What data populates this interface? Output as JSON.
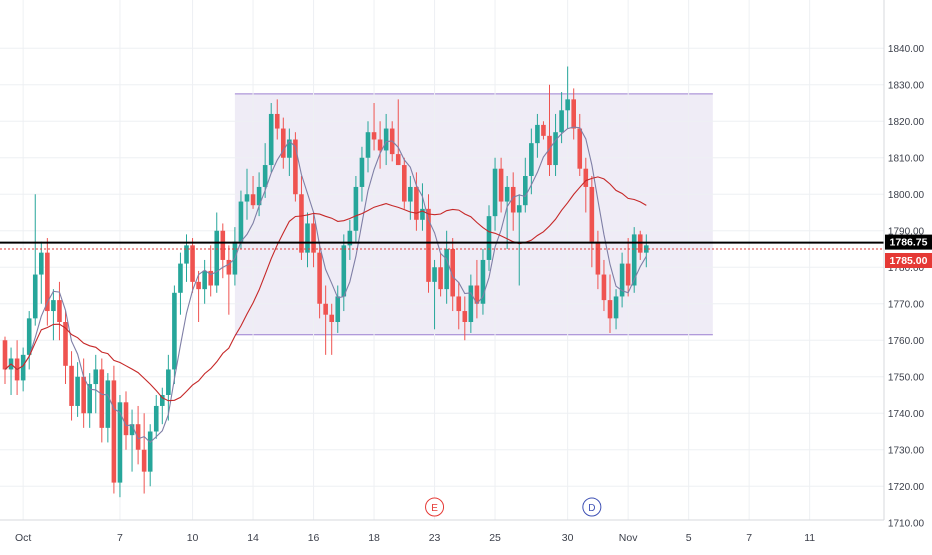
{
  "chart_data": {
    "type": "candlestick",
    "y_axis": {
      "range": [
        1705,
        1845
      ],
      "ticks": [
        "1710.00",
        "1720.00",
        "1730.00",
        "1740.00",
        "1750.00",
        "1760.00",
        "1770.00",
        "1780.00",
        "1790.00",
        "1800.00",
        "1810.00",
        "1820.00",
        "1830.00",
        "1840.00"
      ],
      "side": "right"
    },
    "x_axis": {
      "labels": [
        {
          "text": "Oct",
          "bar": 3
        },
        {
          "text": "7",
          "bar": 19
        },
        {
          "text": "10",
          "bar": 31
        },
        {
          "text": "14",
          "bar": 41
        },
        {
          "text": "16",
          "bar": 51
        },
        {
          "text": "18",
          "bar": 61
        },
        {
          "text": "23",
          "bar": 71
        },
        {
          "text": "25",
          "bar": 81
        },
        {
          "text": "30",
          "bar": 93
        },
        {
          "text": "Nov",
          "bar": 103
        },
        {
          "text": "5",
          "bar": 113
        },
        {
          "text": "7",
          "bar": 123
        },
        {
          "text": "11",
          "bar": 133
        }
      ]
    },
    "price_labels": [
      {
        "text": "1786.75",
        "value": 1786.75,
        "color": "#000000",
        "line": "solid"
      },
      {
        "text": "1785.00",
        "value": 1785.0,
        "color": "#e53935",
        "line": "dotted"
      }
    ],
    "range_box": {
      "x_start_bar": 38,
      "x_end_bar": 117,
      "top": 1827.5,
      "bottom": 1761.5
    },
    "event_markers": [
      {
        "text": "E",
        "bar": 71,
        "color": "#e53935"
      },
      {
        "text": "D",
        "bar": 97,
        "color": "#3f51b5"
      }
    ],
    "candles": [
      [
        1760,
        1761,
        1748,
        1752
      ],
      [
        1752,
        1758,
        1745,
        1755
      ],
      [
        1755,
        1760,
        1745,
        1749
      ],
      [
        1749,
        1758,
        1746,
        1756
      ],
      [
        1756,
        1768,
        1752,
        1766
      ],
      [
        1766,
        1800,
        1764,
        1778
      ],
      [
        1778,
        1787,
        1770,
        1784
      ],
      [
        1784,
        1788,
        1764,
        1768
      ],
      [
        1768,
        1774,
        1760,
        1771
      ],
      [
        1771,
        1776,
        1760,
        1765
      ],
      [
        1765,
        1768,
        1748,
        1753
      ],
      [
        1753,
        1757,
        1738,
        1742
      ],
      [
        1742,
        1754,
        1739,
        1750
      ],
      [
        1750,
        1755,
        1736,
        1740
      ],
      [
        1740,
        1751,
        1736,
        1748
      ],
      [
        1748,
        1756,
        1740,
        1752
      ],
      [
        1752,
        1755,
        1732,
        1736
      ],
      [
        1736,
        1751,
        1732,
        1749
      ],
      [
        1749,
        1753,
        1718,
        1721
      ],
      [
        1721,
        1745,
        1717,
        1743
      ],
      [
        1743,
        1746,
        1730,
        1734
      ],
      [
        1734,
        1741,
        1724,
        1737
      ],
      [
        1737,
        1742,
        1726,
        1730
      ],
      [
        1730,
        1740,
        1718,
        1724
      ],
      [
        1724,
        1737,
        1720,
        1735
      ],
      [
        1735,
        1745,
        1733,
        1742
      ],
      [
        1742,
        1747,
        1737,
        1745
      ],
      [
        1745,
        1756,
        1738,
        1752
      ],
      [
        1752,
        1775,
        1748,
        1773
      ],
      [
        1773,
        1784,
        1767,
        1781
      ],
      [
        1781,
        1789,
        1776,
        1786
      ],
      [
        1786,
        1788,
        1773,
        1776
      ],
      [
        1776,
        1779,
        1765,
        1774
      ],
      [
        1774,
        1782,
        1770,
        1779
      ],
      [
        1779,
        1786,
        1772,
        1775
      ],
      [
        1775,
        1795,
        1773,
        1790
      ],
      [
        1790,
        1792,
        1777,
        1782
      ],
      [
        1782,
        1786,
        1767,
        1778
      ],
      [
        1778,
        1791,
        1775,
        1787
      ],
      [
        1787,
        1801,
        1785,
        1798
      ],
      [
        1798,
        1807,
        1793,
        1800
      ],
      [
        1800,
        1805,
        1796,
        1797
      ],
      [
        1797,
        1806,
        1794,
        1802
      ],
      [
        1802,
        1814,
        1799,
        1808
      ],
      [
        1808,
        1825,
        1806,
        1822
      ],
      [
        1822,
        1826,
        1815,
        1818
      ],
      [
        1818,
        1821,
        1807,
        1810
      ],
      [
        1810,
        1818,
        1805,
        1815
      ],
      [
        1815,
        1817,
        1798,
        1800
      ],
      [
        1800,
        1805,
        1782,
        1784
      ],
      [
        1784,
        1795,
        1780,
        1792
      ],
      [
        1792,
        1795,
        1780,
        1784
      ],
      [
        1784,
        1787,
        1766,
        1770
      ],
      [
        1770,
        1775,
        1756,
        1767
      ],
      [
        1767,
        1770,
        1756,
        1765
      ],
      [
        1765,
        1775,
        1762,
        1772
      ],
      [
        1772,
        1789,
        1768,
        1786
      ],
      [
        1786,
        1793,
        1782,
        1790
      ],
      [
        1790,
        1805,
        1787,
        1802
      ],
      [
        1802,
        1813,
        1798,
        1810
      ],
      [
        1810,
        1820,
        1806,
        1817
      ],
      [
        1817,
        1825,
        1812,
        1815
      ],
      [
        1815,
        1820,
        1807,
        1812
      ],
      [
        1812,
        1822,
        1808,
        1818
      ],
      [
        1818,
        1820,
        1809,
        1811
      ],
      [
        1811,
        1826,
        1808,
        1808
      ],
      [
        1808,
        1810,
        1796,
        1798
      ],
      [
        1798,
        1805,
        1793,
        1802
      ],
      [
        1802,
        1806,
        1790,
        1793
      ],
      [
        1793,
        1803,
        1790,
        1796
      ],
      [
        1796,
        1800,
        1773,
        1776
      ],
      [
        1776,
        1782,
        1763,
        1780
      ],
      [
        1780,
        1784,
        1772,
        1774
      ],
      [
        1774,
        1790,
        1770,
        1785
      ],
      [
        1785,
        1788,
        1768,
        1772
      ],
      [
        1772,
        1776,
        1763,
        1768
      ],
      [
        1768,
        1772,
        1760,
        1765
      ],
      [
        1765,
        1778,
        1762,
        1775
      ],
      [
        1775,
        1782,
        1766,
        1770
      ],
      [
        1770,
        1785,
        1767,
        1782
      ],
      [
        1782,
        1797,
        1779,
        1794
      ],
      [
        1794,
        1810,
        1790,
        1807
      ],
      [
        1807,
        1810,
        1795,
        1798
      ],
      [
        1798,
        1805,
        1785,
        1802
      ],
      [
        1802,
        1806,
        1790,
        1795
      ],
      [
        1795,
        1800,
        1775,
        1797
      ],
      [
        1797,
        1810,
        1795,
        1805
      ],
      [
        1805,
        1818,
        1800,
        1814
      ],
      [
        1814,
        1822,
        1810,
        1819
      ],
      [
        1819,
        1820,
        1815,
        1816
      ],
      [
        1816,
        1830,
        1805,
        1808
      ],
      [
        1808,
        1822,
        1805,
        1817
      ],
      [
        1817,
        1828,
        1814,
        1823
      ],
      [
        1823,
        1835,
        1818,
        1826
      ],
      [
        1826,
        1829,
        1815,
        1818
      ],
      [
        1818,
        1822,
        1805,
        1807
      ],
      [
        1807,
        1810,
        1795,
        1802
      ],
      [
        1802,
        1805,
        1780,
        1787
      ],
      [
        1787,
        1790,
        1774,
        1778
      ],
      [
        1778,
        1782,
        1768,
        1771
      ],
      [
        1771,
        1778,
        1762,
        1766
      ],
      [
        1766,
        1774,
        1763,
        1772
      ],
      [
        1772,
        1784,
        1769,
        1781
      ],
      [
        1781,
        1788,
        1772,
        1775
      ],
      [
        1775,
        1791,
        1773,
        1789
      ],
      [
        1789,
        1790,
        1782,
        1784
      ],
      [
        1784,
        1789,
        1780,
        1786
      ]
    ],
    "series": [
      {
        "type": "sma",
        "period": 5,
        "color": "#7f7fa6"
      },
      {
        "type": "sma",
        "period": 20,
        "color": "#c62828"
      }
    ],
    "colors": {
      "up": "#26a69a",
      "down": "#ef5350",
      "box_fill": "#ece9f5",
      "box_stroke": "#9c7fd1",
      "grid": "#eef0f3",
      "axis_text": "#3b3f4a"
    }
  }
}
